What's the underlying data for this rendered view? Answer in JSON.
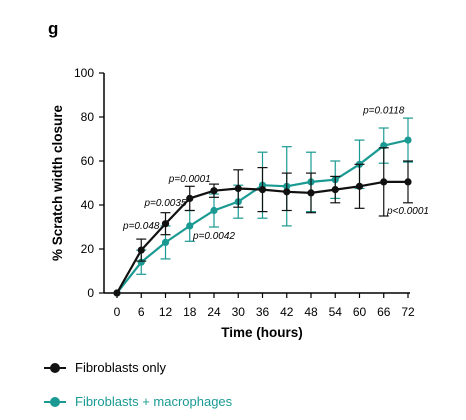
{
  "panel_label": "g",
  "chart_data": {
    "type": "line",
    "title": "",
    "xlabel": "Time (hours)",
    "ylabel": "% Scratch width closure",
    "x": [
      0,
      6,
      12,
      18,
      24,
      30,
      36,
      42,
      48,
      54,
      60,
      66,
      72
    ],
    "xlim": [
      0,
      72
    ],
    "ylim": [
      0,
      100
    ],
    "yticks": [
      0,
      20,
      40,
      60,
      80,
      100
    ],
    "grid": false,
    "legend_position": "bottom-left",
    "series": [
      {
        "name": "Fibroblasts only",
        "color": "#111111",
        "values": [
          0,
          19.5,
          31.5,
          43,
          46.5,
          47.5,
          47,
          46,
          45.5,
          47,
          48.5,
          50.5,
          50.5
        ],
        "errors": [
          0,
          5,
          5,
          5.5,
          3,
          8.5,
          10,
          8.5,
          9,
          6,
          10,
          15.5,
          9.5
        ]
      },
      {
        "name": "Fibroblasts + macrophages",
        "color": "#1a9a92",
        "values": [
          0,
          14,
          23,
          30.5,
          37.5,
          41.5,
          49,
          48.5,
          50.5,
          51.5,
          58.5,
          67,
          69.5
        ],
        "errors": [
          0,
          5.5,
          7.5,
          7,
          7.5,
          7.5,
          15,
          18,
          13.5,
          8.5,
          11,
          8,
          10
        ]
      }
    ],
    "annotations": [
      {
        "text": "p=0.048",
        "x": 6,
        "y": 29
      },
      {
        "text": "p=0.0035",
        "x": 12,
        "y": 39.5
      },
      {
        "text": "p=0.0001",
        "x": 18,
        "y": 50.5
      },
      {
        "text": "p=0.0042",
        "x": 24,
        "y": 24.5
      },
      {
        "text": "p=0.0118",
        "x": 66,
        "y": 81.5
      },
      {
        "text": "p<0.0001",
        "x": 72,
        "y": 36
      }
    ]
  }
}
